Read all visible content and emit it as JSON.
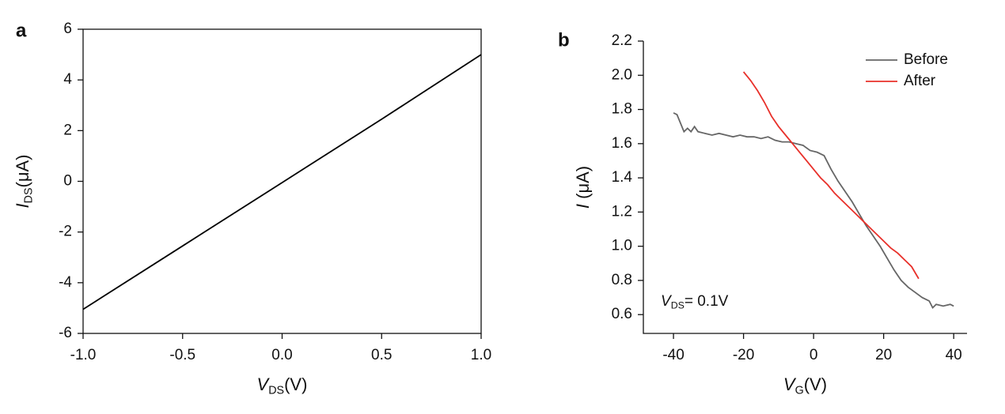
{
  "chart_data": [
    {
      "type": "line",
      "panel": "a",
      "xlabel": [
        "V",
        "DS",
        "(V)"
      ],
      "ylabel": [
        "I",
        "DS",
        "(μA)"
      ],
      "xlim": [
        -1,
        1
      ],
      "ylim": [
        -6,
        6
      ],
      "xticks": [
        {
          "value": -1,
          "label": "-1.0"
        },
        -0.5,
        {
          "value": 0,
          "label": "0.0"
        },
        0.5,
        {
          "value": 1,
          "label": "1.0"
        }
      ],
      "yticks": [
        -6,
        -4,
        -2,
        0,
        2,
        4,
        6
      ],
      "series": [
        {
          "color": "#000000",
          "x": [
            -1,
            -0.5,
            0,
            0.5,
            1
          ],
          "values": [
            -5.05,
            -2.55,
            -0.05,
            2.45,
            5.0
          ]
        }
      ]
    },
    {
      "type": "line",
      "panel": "b",
      "xlabel": [
        "V",
        "G",
        "(V)"
      ],
      "ylabel": [
        "I",
        "",
        " (μA)"
      ],
      "annotation": [
        "V",
        "DS",
        "= 0.1V"
      ],
      "xlim": [
        -48.6,
        43.8
      ],
      "ylim": [
        0.49,
        2.2
      ],
      "xticks": [
        -40,
        -20,
        0,
        20,
        40
      ],
      "yticks": [
        0.6,
        0.8,
        {
          "value": 1,
          "label": "1.0"
        },
        1.2,
        1.4,
        1.6,
        1.8,
        {
          "value": 2,
          "label": "2.0"
        },
        2.2
      ],
      "legend": "upper right",
      "series": [
        {
          "name": "Before",
          "color": "#666666",
          "x": [
            -40,
            -39,
            -38,
            -37,
            -36,
            -35,
            -34,
            -33,
            -31,
            -29,
            -27,
            -25,
            -23,
            -21,
            -19,
            -17,
            -15,
            -13,
            -11,
            -9,
            -7,
            -5,
            -3,
            -1,
            1,
            3,
            5,
            7,
            9,
            11,
            13,
            15,
            17,
            19,
            21,
            23,
            25,
            27,
            29,
            31,
            33,
            34,
            35,
            37,
            39,
            40
          ],
          "values": [
            1.78,
            1.77,
            1.72,
            1.67,
            1.69,
            1.67,
            1.7,
            1.67,
            1.66,
            1.65,
            1.66,
            1.65,
            1.64,
            1.65,
            1.64,
            1.64,
            1.63,
            1.64,
            1.62,
            1.61,
            1.61,
            1.6,
            1.59,
            1.56,
            1.55,
            1.53,
            1.45,
            1.38,
            1.32,
            1.26,
            1.19,
            1.12,
            1.06,
            1.0,
            0.93,
            0.86,
            0.8,
            0.76,
            0.73,
            0.7,
            0.68,
            0.64,
            0.66,
            0.65,
            0.66,
            0.65
          ]
        },
        {
          "name": "After",
          "color": "#e8302a",
          "x": [
            -20,
            -18,
            -16,
            -14,
            -12,
            -10,
            -8,
            -6,
            -4,
            -2,
            0,
            2,
            4,
            6,
            8,
            10,
            12,
            14,
            16,
            18,
            20,
            22,
            24,
            26,
            28,
            30
          ],
          "values": [
            2.02,
            1.97,
            1.91,
            1.84,
            1.76,
            1.7,
            1.65,
            1.6,
            1.55,
            1.5,
            1.45,
            1.4,
            1.36,
            1.31,
            1.27,
            1.23,
            1.19,
            1.15,
            1.11,
            1.07,
            1.03,
            0.99,
            0.96,
            0.92,
            0.88,
            0.81
          ]
        }
      ]
    }
  ]
}
